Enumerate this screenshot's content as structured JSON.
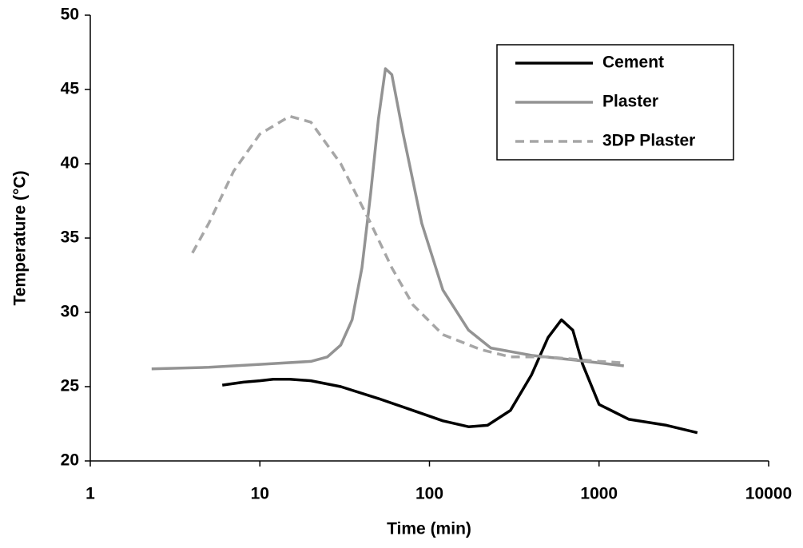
{
  "chart_data": {
    "type": "line",
    "x_label": "Time (min)",
    "y_label": "Temperature (°C)",
    "xscale": "log",
    "xlim": [
      1,
      10000
    ],
    "xticks": [
      1,
      10,
      100,
      1000,
      10000
    ],
    "ylim": [
      20,
      50
    ],
    "yticks": [
      20,
      25,
      30,
      35,
      40,
      45,
      50
    ],
    "grid": false,
    "legend": "top-right",
    "series": [
      {
        "name": "Cement",
        "color": "#000000",
        "dash": false,
        "x": [
          6,
          8,
          10,
          12,
          15,
          20,
          30,
          50,
          80,
          120,
          170,
          220,
          300,
          400,
          500,
          600,
          700,
          800,
          1000,
          1500,
          2500,
          3800
        ],
        "values": [
          25.1,
          25.3,
          25.4,
          25.5,
          25.5,
          25.4,
          25.0,
          24.2,
          23.4,
          22.7,
          22.3,
          22.4,
          23.4,
          25.8,
          28.3,
          29.5,
          28.8,
          26.5,
          23.8,
          22.8,
          22.4,
          21.9
        ]
      },
      {
        "name": "Plaster",
        "color": "#939393",
        "dash": false,
        "x": [
          2.3,
          5,
          10,
          20,
          25,
          30,
          35,
          40,
          45,
          50,
          55,
          60,
          70,
          90,
          120,
          170,
          230,
          400,
          700,
          1000,
          1400
        ],
        "values": [
          26.2,
          26.3,
          26.5,
          26.7,
          27.0,
          27.8,
          29.5,
          33,
          38,
          43,
          46.4,
          46,
          42,
          36,
          31.5,
          28.8,
          27.6,
          27.1,
          26.8,
          26.6,
          26.4
        ]
      },
      {
        "name": "3DP Plaster",
        "color": "#a6a6a6",
        "dash": true,
        "x": [
          4,
          5,
          7,
          10,
          15,
          20,
          30,
          45,
          60,
          80,
          120,
          200,
          300,
          500,
          1000,
          1400
        ],
        "values": [
          34,
          36,
          39.5,
          42,
          43.2,
          42.8,
          40,
          36,
          33,
          30.5,
          28.5,
          27.5,
          27,
          27,
          26.7,
          26.6
        ]
      }
    ]
  }
}
